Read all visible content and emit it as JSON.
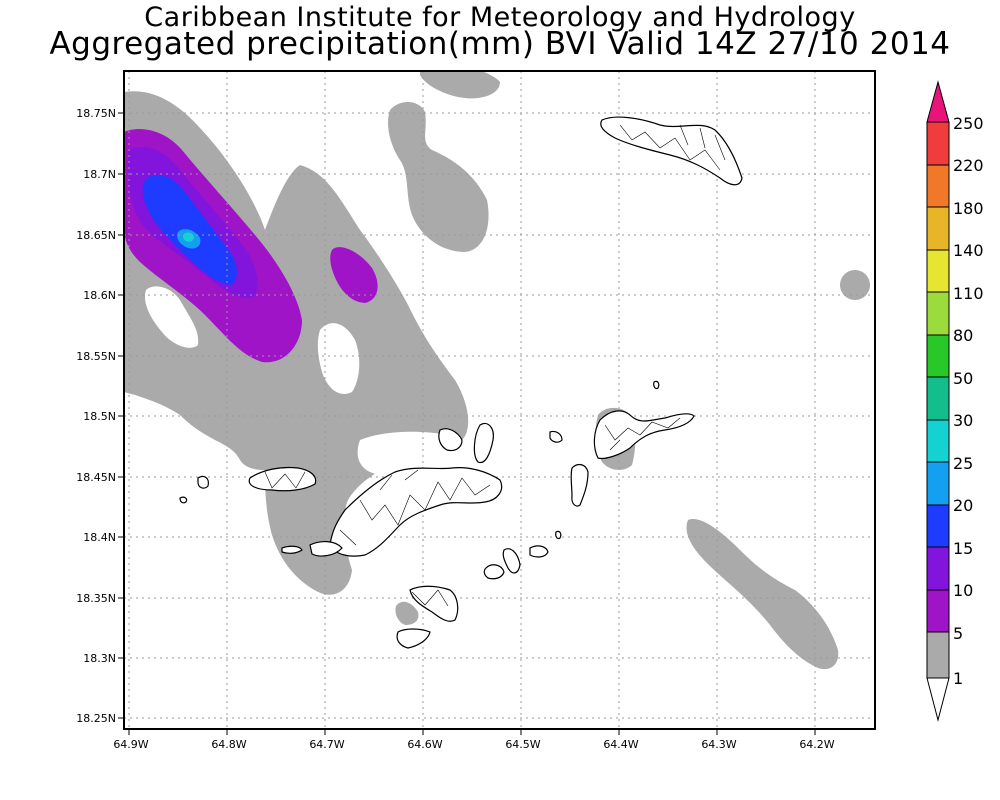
{
  "titles": {
    "line1": "Caribbean Institute for Meteorology and Hydrology",
    "line2": "Aggregated precipitation(mm) BVI Valid 14Z 27/10 2014"
  },
  "axes": {
    "y_ticks": [
      "18.75N",
      "18.7N",
      "18.65N",
      "18.6N",
      "18.55N",
      "18.5N",
      "18.45N",
      "18.4N",
      "18.35N",
      "18.3N",
      "18.25N"
    ],
    "x_ticks": [
      "64.9W",
      "64.8W",
      "64.7W",
      "64.6W",
      "64.5W",
      "64.4W",
      "64.3W",
      "64.2W"
    ]
  },
  "colorbar": {
    "labels": [
      "250",
      "220",
      "180",
      "140",
      "110",
      "80",
      "50",
      "30",
      "25",
      "20",
      "15",
      "10",
      "5",
      "1"
    ],
    "colors": {
      "above_250": "#e8147a",
      "c220_250": "#f03c3c",
      "c180_220": "#f07828",
      "c140_180": "#e8b428",
      "c110_140": "#e6e632",
      "c80_110": "#9bdc3c",
      "c50_80": "#28c828",
      "c30_50": "#14be8c",
      "c25_30": "#14d2d2",
      "c20_25": "#14a0f0",
      "c15_20": "#1e3cff",
      "c10_15": "#8214dc",
      "c5_10": "#a014c8",
      "c1_5": "#aaaaaa",
      "below_1": "#ffffff"
    }
  }
}
